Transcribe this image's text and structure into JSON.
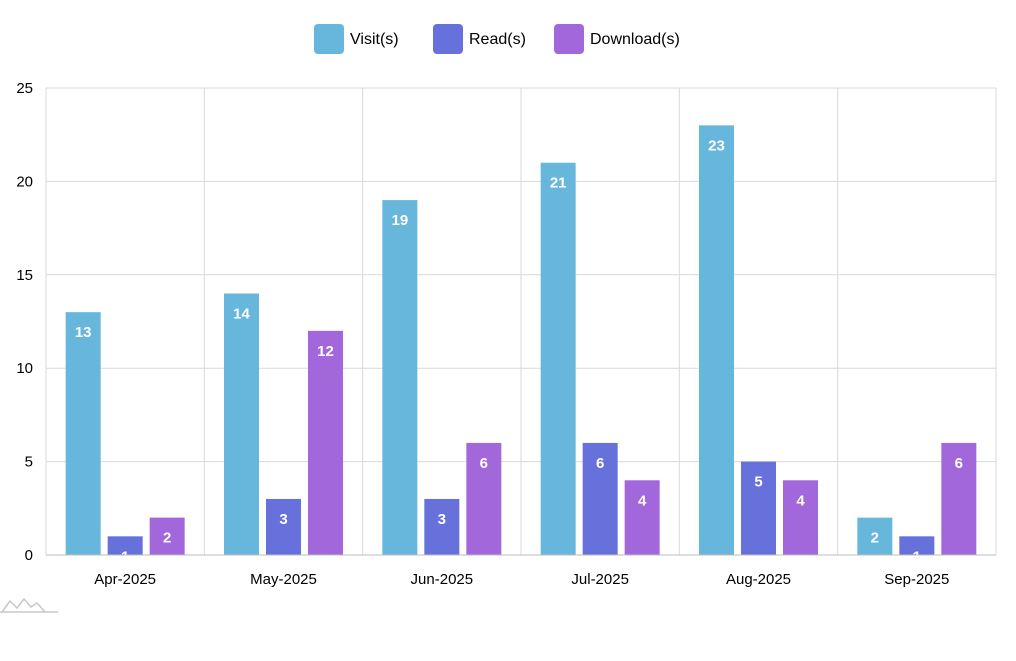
{
  "chart_data": {
    "type": "bar",
    "title": "",
    "xlabel": "",
    "ylabel": "",
    "ylim": [
      0,
      25
    ],
    "yticks": [
      0,
      5,
      10,
      15,
      20,
      25
    ],
    "grid": true,
    "legend_position": "top-center",
    "categories": [
      "Apr-2025",
      "May-2025",
      "Jun-2025",
      "Jul-2025",
      "Aug-2025",
      "Sep-2025"
    ],
    "series": [
      {
        "name": "Visit(s)",
        "color": "#67b7dc",
        "values": [
          13,
          14,
          19,
          21,
          23,
          2
        ]
      },
      {
        "name": "Read(s)",
        "color": "#6771dc",
        "values": [
          1,
          3,
          3,
          6,
          5,
          1
        ]
      },
      {
        "name": "Download(s)",
        "color": "#a367dc",
        "values": [
          2,
          12,
          6,
          4,
          4,
          6
        ]
      }
    ]
  },
  "logo": {
    "icon": "amcharts-logo-icon"
  }
}
